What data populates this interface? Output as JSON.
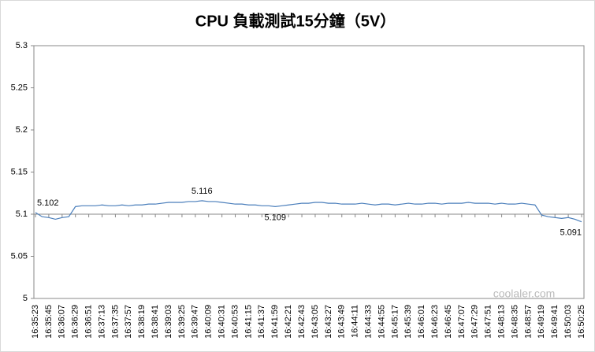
{
  "chart_data": {
    "type": "line",
    "title": "CPU 負載測試15分鐘（5V）",
    "categories": [
      "16:35:23",
      null,
      "16:35:45",
      null,
      "16:36:07",
      null,
      "16:36:29",
      null,
      "16:36:51",
      null,
      "16:37:13",
      null,
      "16:37:35",
      null,
      "16:37:57",
      null,
      "16:38:19",
      null,
      "16:38:41",
      null,
      "16:39:03",
      null,
      "16:39:25",
      null,
      "16:39:47",
      null,
      "16:40:09",
      null,
      "16:40:31",
      null,
      "16:40:53",
      null,
      "16:41:15",
      null,
      "16:41:37",
      null,
      "16:41:59",
      null,
      "16:42:21",
      null,
      "16:42:43",
      null,
      "16:43:05",
      null,
      "16:43:27",
      null,
      "16:43:49",
      null,
      "16:44:11",
      null,
      "16:44:33",
      null,
      "16:44:55",
      null,
      "16:45:17",
      null,
      "16:45:39",
      null,
      "16:46:01",
      null,
      "16:46:23",
      null,
      "16:46:45",
      null,
      "16:47:07",
      null,
      "16:47:29",
      null,
      "16:47:51",
      null,
      "16:48:13",
      null,
      "16:48:35",
      null,
      "16:48:57",
      null,
      "16:49:19",
      null,
      "16:49:41",
      null,
      "16:50:03",
      null,
      "16:50:25"
    ],
    "series": [
      {
        "color": "#4a7ebb",
        "values": [
          5.102,
          5.097,
          5.096,
          5.094,
          5.096,
          5.097,
          5.109,
          5.11,
          5.11,
          5.11,
          5.111,
          5.11,
          5.11,
          5.111,
          5.11,
          5.111,
          5.111,
          5.112,
          5.112,
          5.113,
          5.114,
          5.114,
          5.114,
          5.115,
          5.115,
          5.116,
          5.115,
          5.115,
          5.114,
          5.113,
          5.112,
          5.112,
          5.111,
          5.111,
          5.11,
          5.11,
          5.109,
          5.11,
          5.111,
          5.112,
          5.113,
          5.113,
          5.114,
          5.114,
          5.113,
          5.113,
          5.112,
          5.112,
          5.112,
          5.113,
          5.112,
          5.111,
          5.112,
          5.112,
          5.111,
          5.112,
          5.113,
          5.112,
          5.112,
          5.113,
          5.113,
          5.112,
          5.113,
          5.113,
          5.113,
          5.114,
          5.113,
          5.113,
          5.113,
          5.112,
          5.113,
          5.112,
          5.112,
          5.113,
          5.112,
          5.111,
          5.099,
          5.097,
          5.096,
          5.095,
          5.096,
          5.094,
          5.091
        ],
        "value_labels": [
          "5.102",
          null,
          null,
          null,
          null,
          null,
          null,
          null,
          null,
          null,
          null,
          null,
          null,
          null,
          null,
          null,
          null,
          null,
          null,
          null,
          null,
          null,
          null,
          null,
          null,
          "5.116",
          null,
          null,
          null,
          null,
          null,
          null,
          null,
          null,
          null,
          null,
          "5.109",
          null,
          null,
          null,
          null,
          null,
          null,
          null,
          null,
          null,
          null,
          null,
          null,
          null,
          null,
          null,
          null,
          null,
          null,
          null,
          null,
          null,
          null,
          null,
          null,
          null,
          null,
          null,
          null,
          null,
          null,
          null,
          null,
          null,
          null,
          null,
          null,
          null,
          null,
          null,
          null,
          null,
          null,
          null,
          null,
          null,
          "5.091"
        ]
      }
    ],
    "ylim": [
      5,
      5.3
    ],
    "yticks": [
      5,
      5.05,
      5.1,
      5.15,
      5.2,
      5.25,
      5.3
    ],
    "x_axis_crosses": 5.1,
    "watermark": "coolaler.com"
  }
}
